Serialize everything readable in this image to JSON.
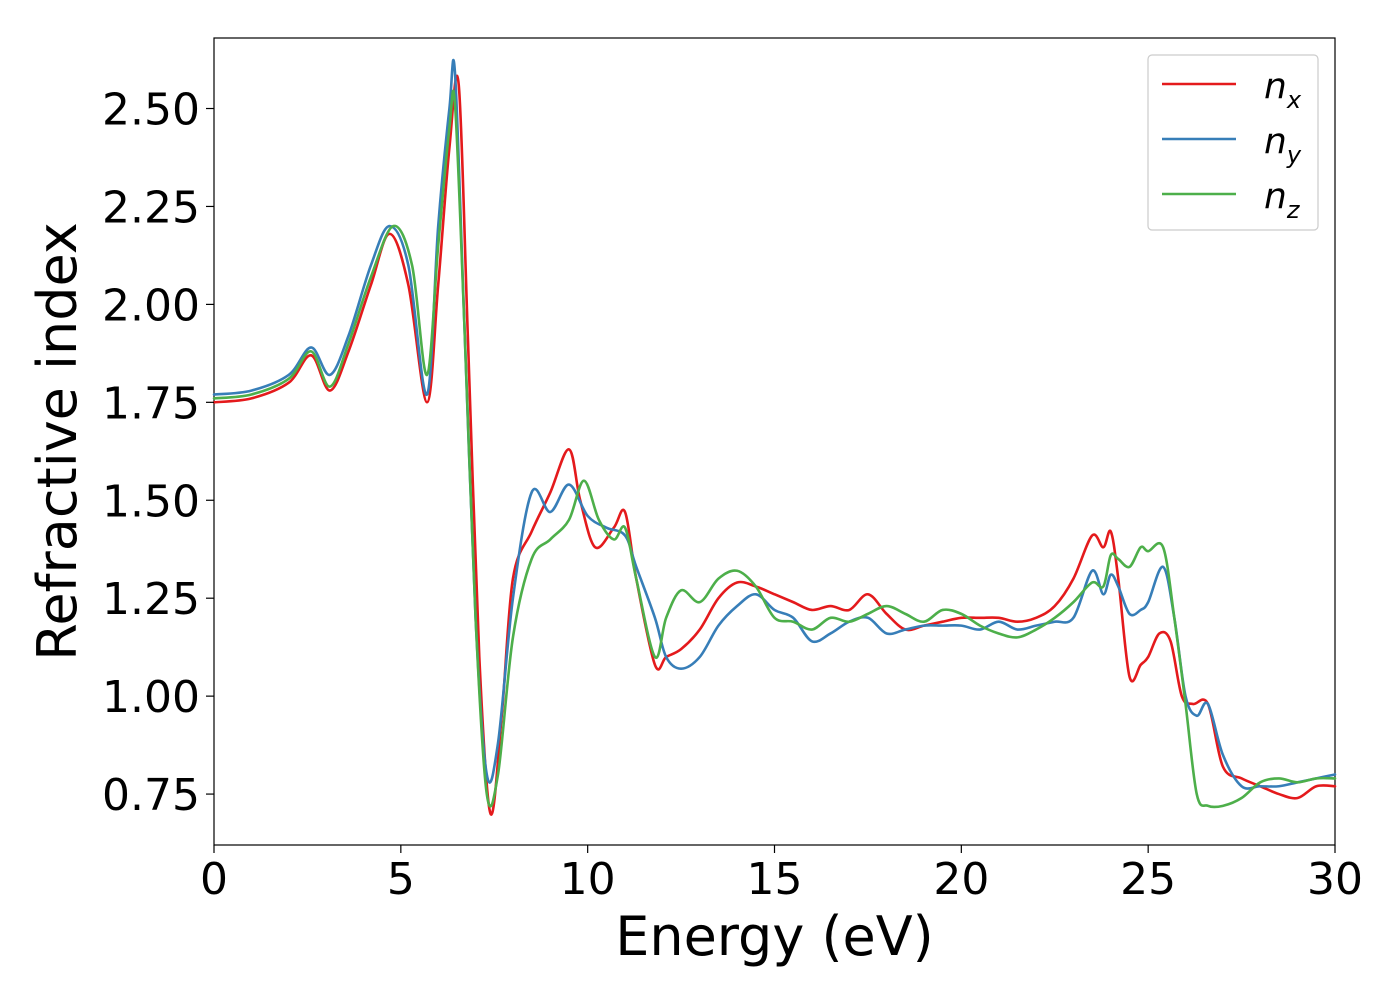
{
  "chart_data": {
    "type": "line",
    "xlabel": "Energy (eV)",
    "ylabel": "Refractive index",
    "xlim": [
      0,
      30
    ],
    "ylim": [
      0.62,
      2.68
    ],
    "xticks": [
      0,
      5,
      10,
      15,
      20,
      25,
      30
    ],
    "xtick_labels": [
      "0",
      "5",
      "10",
      "15",
      "20",
      "25",
      "30"
    ],
    "yticks": [
      0.75,
      1.0,
      1.25,
      1.5,
      1.75,
      2.0,
      2.25,
      2.5
    ],
    "ytick_labels": [
      "0.75",
      "1.00",
      "1.25",
      "1.50",
      "1.75",
      "2.00",
      "2.25",
      "2.50"
    ],
    "grid": false,
    "legend": "top-right",
    "series": [
      {
        "name": "n_x",
        "label_base": "n",
        "label_sub": "x",
        "color": "#e41a1c",
        "x": [
          0,
          1,
          2,
          2.6,
          3.1,
          3.6,
          4.2,
          4.7,
          5.2,
          5.7,
          6.0,
          6.3,
          6.55,
          6.8,
          7.1,
          7.4,
          7.7,
          8.0,
          8.5,
          9.0,
          9.5,
          9.8,
          10.2,
          10.7,
          11.0,
          11.3,
          11.8,
          12.1,
          12.5,
          13.0,
          13.5,
          14.0,
          14.5,
          15.0,
          15.5,
          16.0,
          16.5,
          17.0,
          17.5,
          18.0,
          18.5,
          19.0,
          19.5,
          20.0,
          20.5,
          21.0,
          21.5,
          22.0,
          22.5,
          23.0,
          23.5,
          23.8,
          24.0,
          24.2,
          24.5,
          24.8,
          25.0,
          25.3,
          25.6,
          25.9,
          26.2,
          26.6,
          27.0,
          27.5,
          28.0,
          28.5,
          29.0,
          29.5,
          30.0
        ],
        "y": [
          1.75,
          1.76,
          1.8,
          1.87,
          1.78,
          1.88,
          2.05,
          2.18,
          2.05,
          1.75,
          2.05,
          2.4,
          2.56,
          1.9,
          1.1,
          0.7,
          0.95,
          1.3,
          1.42,
          1.52,
          1.63,
          1.5,
          1.38,
          1.43,
          1.47,
          1.3,
          1.08,
          1.1,
          1.12,
          1.17,
          1.25,
          1.29,
          1.28,
          1.26,
          1.24,
          1.22,
          1.23,
          1.22,
          1.26,
          1.21,
          1.17,
          1.18,
          1.19,
          1.2,
          1.2,
          1.2,
          1.19,
          1.2,
          1.23,
          1.3,
          1.41,
          1.38,
          1.42,
          1.3,
          1.05,
          1.08,
          1.1,
          1.16,
          1.14,
          1.0,
          0.98,
          0.98,
          0.82,
          0.79,
          0.77,
          0.75,
          0.74,
          0.77,
          0.77
        ]
      },
      {
        "name": "n_y",
        "label_base": "n",
        "label_sub": "y",
        "color": "#377eb8",
        "x": [
          0,
          1,
          2,
          2.6,
          3.1,
          3.6,
          4.2,
          4.7,
          5.2,
          5.7,
          6.0,
          6.3,
          6.45,
          6.7,
          7.0,
          7.3,
          7.6,
          8.0,
          8.5,
          9.0,
          9.5,
          10.0,
          10.5,
          11.0,
          11.3,
          11.8,
          12.1,
          12.5,
          13.0,
          13.5,
          14.0,
          14.5,
          15.0,
          15.5,
          16.0,
          16.5,
          17.0,
          17.5,
          18.0,
          18.5,
          19.0,
          19.5,
          20.0,
          20.5,
          21.0,
          21.5,
          22.0,
          22.5,
          23.0,
          23.5,
          23.8,
          24.0,
          24.2,
          24.5,
          24.8,
          25.0,
          25.4,
          25.7,
          26.0,
          26.3,
          26.6,
          27.0,
          27.5,
          28.0,
          28.5,
          29.0,
          29.5,
          30.0
        ],
        "y": [
          1.77,
          1.78,
          1.82,
          1.89,
          1.82,
          1.92,
          2.1,
          2.2,
          2.1,
          1.77,
          2.2,
          2.5,
          2.59,
          1.95,
          1.2,
          0.8,
          0.88,
          1.25,
          1.52,
          1.47,
          1.54,
          1.46,
          1.43,
          1.41,
          1.33,
          1.2,
          1.1,
          1.07,
          1.1,
          1.18,
          1.23,
          1.26,
          1.22,
          1.2,
          1.14,
          1.16,
          1.19,
          1.2,
          1.16,
          1.17,
          1.18,
          1.18,
          1.18,
          1.17,
          1.19,
          1.17,
          1.18,
          1.19,
          1.2,
          1.32,
          1.26,
          1.31,
          1.28,
          1.21,
          1.22,
          1.24,
          1.33,
          1.2,
          1.0,
          0.95,
          0.98,
          0.85,
          0.77,
          0.77,
          0.77,
          0.78,
          0.79,
          0.8
        ]
      },
      {
        "name": "n_z",
        "label_base": "n",
        "label_sub": "z",
        "color": "#4daf4a",
        "x": [
          0,
          1,
          2,
          2.6,
          3.1,
          3.6,
          4.2,
          4.8,
          5.3,
          5.7,
          6.0,
          6.3,
          6.45,
          6.7,
          7.0,
          7.3,
          7.6,
          8.0,
          8.5,
          9.0,
          9.5,
          9.9,
          10.3,
          10.7,
          11.0,
          11.3,
          11.8,
          12.1,
          12.5,
          13.0,
          13.5,
          14.0,
          14.5,
          15.0,
          15.5,
          16.0,
          16.5,
          17.0,
          17.5,
          18.0,
          18.5,
          19.0,
          19.5,
          20.0,
          20.5,
          21.0,
          21.5,
          22.0,
          22.5,
          23.0,
          23.5,
          23.8,
          24.0,
          24.2,
          24.5,
          24.8,
          25.0,
          25.4,
          25.7,
          26.0,
          26.3,
          26.6,
          27.0,
          27.5,
          28.0,
          28.5,
          29.0,
          29.5,
          30.0
        ],
        "y": [
          1.76,
          1.77,
          1.81,
          1.88,
          1.79,
          1.9,
          2.07,
          2.2,
          2.1,
          1.82,
          2.15,
          2.45,
          2.51,
          1.95,
          1.2,
          0.75,
          0.8,
          1.15,
          1.35,
          1.4,
          1.45,
          1.55,
          1.45,
          1.4,
          1.43,
          1.3,
          1.1,
          1.2,
          1.27,
          1.24,
          1.3,
          1.32,
          1.28,
          1.2,
          1.19,
          1.17,
          1.2,
          1.19,
          1.21,
          1.23,
          1.21,
          1.19,
          1.22,
          1.21,
          1.18,
          1.16,
          1.15,
          1.17,
          1.2,
          1.24,
          1.29,
          1.28,
          1.36,
          1.35,
          1.33,
          1.38,
          1.37,
          1.38,
          1.2,
          0.98,
          0.75,
          0.72,
          0.72,
          0.74,
          0.78,
          0.79,
          0.78,
          0.79,
          0.79
        ]
      }
    ]
  }
}
